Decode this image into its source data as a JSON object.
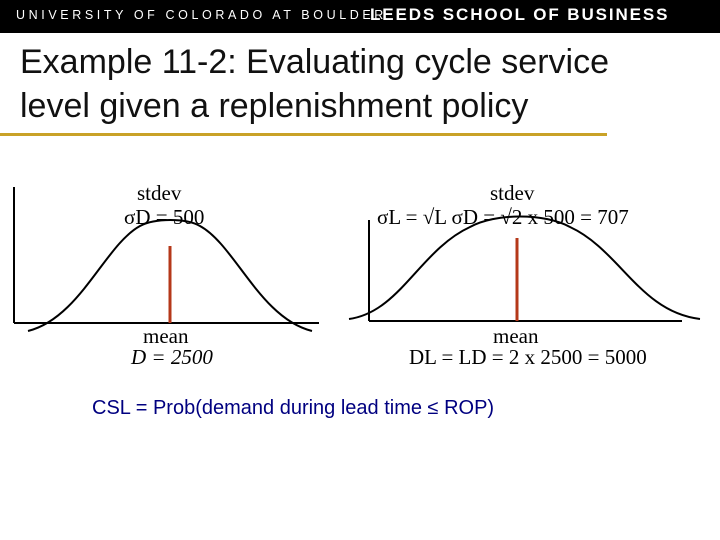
{
  "header": {
    "university": "UNIVERSITY OF COLORADO AT BOULDER",
    "school": "LEEDS SCHOOL OF BUSINESS"
  },
  "title": {
    "line1": "Example 11-2: Evaluating cycle service",
    "line2": "level given a replenishment policy"
  },
  "left_curve": {
    "stdev_label": "stdev",
    "sigma_expr": "σD = 500",
    "mean_label": "mean",
    "mean_expr": "D = 2500"
  },
  "right_curve": {
    "stdev_label": "stdev",
    "sigma_expr": "σL = √L σD = √2 x 500 = 707",
    "mean_label": "mean",
    "mean_expr": "DL = LD = 2 x 2500 = 5000"
  },
  "formula": {
    "csl": "CSL = Prob(demand during lead time ≤ ROP)"
  },
  "colors": {
    "header_bg": "#000000",
    "accent_rule": "#c9a227",
    "mean_line": "#b5381a",
    "formula_text": "#000080"
  }
}
